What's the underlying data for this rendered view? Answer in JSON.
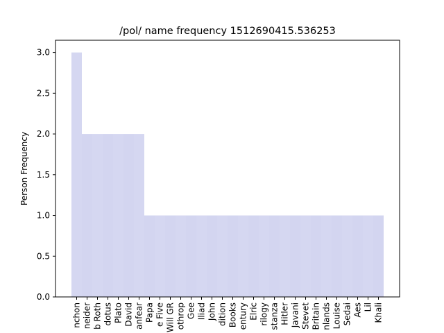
{
  "chart_data": {
    "type": "bar",
    "title": "/pol/ name frequency 1512690415.536253",
    "xlabel": "",
    "ylabel": "Person Frequency",
    "ylim": [
      0,
      3.15
    ],
    "yticks": [
      "0.0",
      "0.5",
      "1.0",
      "1.5",
      "2.0",
      "2.5",
      "3.0"
    ],
    "grid": false,
    "bar_color": "#d3d5f0",
    "categories": [
      "nchon",
      "neider",
      "b Roth",
      "dotus",
      "Plato",
      "David",
      "anfear",
      "Papa",
      "e Five",
      "Will GR",
      "othrop",
      "Gee",
      "Iliad",
      "John",
      "dition",
      "Books",
      "entury",
      "Elric",
      "rilogy",
      "stanza",
      "Hitler",
      "Javani",
      "Stevet",
      "Britain",
      "nlands",
      "Louise",
      "Sedai",
      "Aes",
      "Lil",
      "Khali"
    ],
    "values": [
      3,
      2,
      2,
      2,
      2,
      2,
      2,
      1,
      1,
      1,
      1,
      1,
      1,
      1,
      1,
      1,
      1,
      1,
      1,
      1,
      1,
      1,
      1,
      1,
      1,
      1,
      1,
      1,
      1,
      1
    ]
  }
}
